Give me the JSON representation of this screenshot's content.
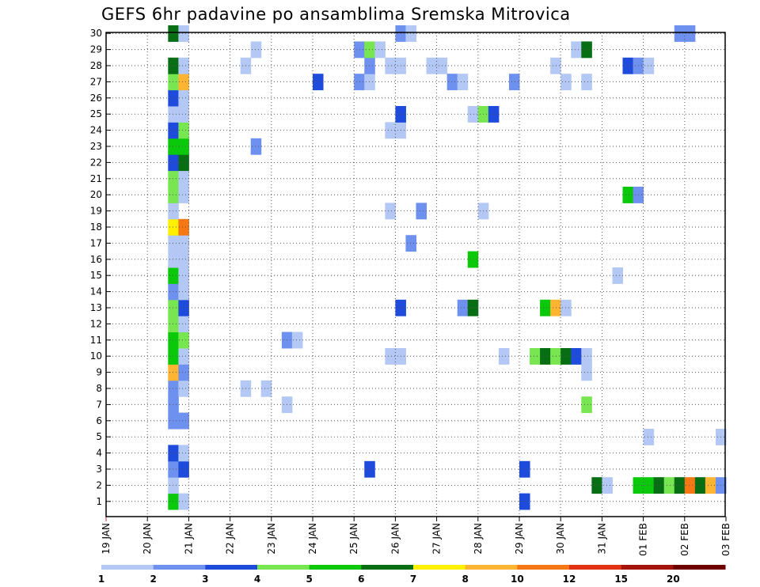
{
  "chart_data": {
    "type": "heatmap",
    "title": "GEFS 6hr padavine po ansamblima Sremska Mitrovica",
    "xlabel": "",
    "ylabel": "",
    "x_tick_labels": [
      "19 JAN",
      "20 JAN",
      "21 JAN",
      "22 JAN",
      "23 JAN",
      "24 JAN",
      "25 JAN",
      "26 JAN",
      "27 JAN",
      "28 JAN",
      "29 JAN",
      "30 JAN",
      "31 JAN",
      "01 FEB",
      "02 FEB",
      "03 FEB"
    ],
    "y_tick_labels": [
      "1",
      "2",
      "3",
      "4",
      "5",
      "6",
      "7",
      "8",
      "9",
      "10",
      "11",
      "12",
      "13",
      "14",
      "15",
      "16",
      "17",
      "18",
      "19",
      "20",
      "21",
      "22",
      "23",
      "24",
      "25",
      "26",
      "27",
      "28",
      "29",
      "30"
    ],
    "time_step_hours": 6,
    "grid": true,
    "legend_placement": "bottom",
    "legend": {
      "labels": [
        "1",
        "2",
        "3",
        "4",
        "5",
        "6",
        "7",
        "8",
        "10",
        "12",
        "15",
        "20"
      ],
      "colors": [
        "#b4c8f5",
        "#6e91f0",
        "#1e4bdc",
        "#78e650",
        "#0ac80a",
        "#086e14",
        "#fff000",
        "#ffb432",
        "#f57814",
        "#e13214",
        "#a5140a",
        "#6e0000"
      ]
    },
    "cells": [
      {
        "t": "20 JAN 18Z",
        "m": 1,
        "c": 4
      },
      {
        "t": "21 JAN 00Z",
        "m": 1,
        "c": 0
      },
      {
        "t": "20 JAN 18Z",
        "m": 2,
        "c": 0
      },
      {
        "t": "20 JAN 18Z",
        "m": 3,
        "c": 1
      },
      {
        "t": "21 JAN 00Z",
        "m": 3,
        "c": 2
      },
      {
        "t": "20 JAN 18Z",
        "m": 4,
        "c": 2
      },
      {
        "t": "21 JAN 00Z",
        "m": 4,
        "c": 0
      },
      {
        "t": "20 JAN 18Z",
        "m": 6,
        "c": 1
      },
      {
        "t": "21 JAN 00Z",
        "m": 6,
        "c": 1
      },
      {
        "t": "20 JAN 18Z",
        "m": 7,
        "c": 1
      },
      {
        "t": "20 JAN 18Z",
        "m": 8,
        "c": 1
      },
      {
        "t": "21 JAN 00Z",
        "m": 8,
        "c": 0
      },
      {
        "t": "20 JAN 18Z",
        "m": 9,
        "c": 7
      },
      {
        "t": "21 JAN 00Z",
        "m": 9,
        "c": 1
      },
      {
        "t": "20 JAN 18Z",
        "m": 10,
        "c": 4
      },
      {
        "t": "21 JAN 00Z",
        "m": 10,
        "c": 0
      },
      {
        "t": "20 JAN 18Z",
        "m": 11,
        "c": 4
      },
      {
        "t": "21 JAN 00Z",
        "m": 11,
        "c": 3
      },
      {
        "t": "20 JAN 18Z",
        "m": 12,
        "c": 3
      },
      {
        "t": "21 JAN 00Z",
        "m": 12,
        "c": 0
      },
      {
        "t": "20 JAN 18Z",
        "m": 13,
        "c": 3
      },
      {
        "t": "21 JAN 00Z",
        "m": 13,
        "c": 2
      },
      {
        "t": "20 JAN 18Z",
        "m": 14,
        "c": 1
      },
      {
        "t": "21 JAN 00Z",
        "m": 14,
        "c": 0
      },
      {
        "t": "20 JAN 18Z",
        "m": 15,
        "c": 4
      },
      {
        "t": "21 JAN 00Z",
        "m": 15,
        "c": 0
      },
      {
        "t": "20 JAN 18Z",
        "m": 16,
        "c": 0
      },
      {
        "t": "21 JAN 00Z",
        "m": 16,
        "c": 0
      },
      {
        "t": "20 JAN 18Z",
        "m": 17,
        "c": 0
      },
      {
        "t": "21 JAN 00Z",
        "m": 17,
        "c": 0
      },
      {
        "t": "20 JAN 18Z",
        "m": 18,
        "c": 6
      },
      {
        "t": "21 JAN 00Z",
        "m": 18,
        "c": 8
      },
      {
        "t": "20 JAN 18Z",
        "m": 19,
        "c": 0
      },
      {
        "t": "20 JAN 18Z",
        "m": 20,
        "c": 3
      },
      {
        "t": "21 JAN 00Z",
        "m": 20,
        "c": 0
      },
      {
        "t": "20 JAN 18Z",
        "m": 21,
        "c": 3
      },
      {
        "t": "21 JAN 00Z",
        "m": 21,
        "c": 0
      },
      {
        "t": "20 JAN 18Z",
        "m": 22,
        "c": 2
      },
      {
        "t": "21 JAN 00Z",
        "m": 22,
        "c": 5
      },
      {
        "t": "20 JAN 18Z",
        "m": 23,
        "c": 4
      },
      {
        "t": "21 JAN 00Z",
        "m": 23,
        "c": 4
      },
      {
        "t": "20 JAN 18Z",
        "m": 24,
        "c": 2
      },
      {
        "t": "21 JAN 00Z",
        "m": 24,
        "c": 3
      },
      {
        "t": "20 JAN 18Z",
        "m": 25,
        "c": 0
      },
      {
        "t": "21 JAN 00Z",
        "m": 25,
        "c": 0
      },
      {
        "t": "20 JAN 18Z",
        "m": 26,
        "c": 2
      },
      {
        "t": "21 JAN 00Z",
        "m": 26,
        "c": 0
      },
      {
        "t": "20 JAN 18Z",
        "m": 27,
        "c": 3
      },
      {
        "t": "21 JAN 00Z",
        "m": 27,
        "c": 7
      },
      {
        "t": "20 JAN 18Z",
        "m": 28,
        "c": 5
      },
      {
        "t": "21 JAN 00Z",
        "m": 28,
        "c": 0
      },
      {
        "t": "20 JAN 18Z",
        "m": 30,
        "c": 5
      },
      {
        "t": "21 JAN 00Z",
        "m": 30,
        "c": 0
      },
      {
        "t": "22 JAN 12Z",
        "m": 8,
        "c": 0
      },
      {
        "t": "22 JAN 12Z",
        "m": 28,
        "c": 0
      },
      {
        "t": "22 JAN 18Z",
        "m": 23,
        "c": 1
      },
      {
        "t": "22 JAN 18Z",
        "m": 29,
        "c": 0
      },
      {
        "t": "23 JAN 00Z",
        "m": 8,
        "c": 0
      },
      {
        "t": "23 JAN 12Z",
        "m": 7,
        "c": 0
      },
      {
        "t": "23 JAN 12Z",
        "m": 11,
        "c": 1
      },
      {
        "t": "23 JAN 18Z",
        "m": 11,
        "c": 0
      },
      {
        "t": "24 JAN 06Z",
        "m": 27,
        "c": 2
      },
      {
        "t": "25 JAN 06Z",
        "m": 27,
        "c": 1
      },
      {
        "t": "25 JAN 06Z",
        "m": 29,
        "c": 1
      },
      {
        "t": "25 JAN 12Z",
        "m": 3,
        "c": 2
      },
      {
        "t": "25 JAN 12Z",
        "m": 27,
        "c": 0
      },
      {
        "t": "25 JAN 12Z",
        "m": 28,
        "c": 1
      },
      {
        "t": "25 JAN 12Z",
        "m": 29,
        "c": 3
      },
      {
        "t": "25 JAN 18Z",
        "m": 29,
        "c": 0
      },
      {
        "t": "26 JAN 00Z",
        "m": 10,
        "c": 0
      },
      {
        "t": "26 JAN 00Z",
        "m": 19,
        "c": 0
      },
      {
        "t": "26 JAN 00Z",
        "m": 24,
        "c": 0
      },
      {
        "t": "26 JAN 00Z",
        "m": 28,
        "c": 0
      },
      {
        "t": "26 JAN 06Z",
        "m": 10,
        "c": 0
      },
      {
        "t": "26 JAN 06Z",
        "m": 13,
        "c": 2
      },
      {
        "t": "26 JAN 06Z",
        "m": 24,
        "c": 0
      },
      {
        "t": "26 JAN 06Z",
        "m": 25,
        "c": 2
      },
      {
        "t": "26 JAN 06Z",
        "m": 28,
        "c": 0
      },
      {
        "t": "26 JAN 06Z",
        "m": 30,
        "c": 1
      },
      {
        "t": "26 JAN 12Z",
        "m": 17,
        "c": 1
      },
      {
        "t": "26 JAN 12Z",
        "m": 30,
        "c": 0
      },
      {
        "t": "26 JAN 18Z",
        "m": 19,
        "c": 1
      },
      {
        "t": "27 JAN 00Z",
        "m": 28,
        "c": 0
      },
      {
        "t": "27 JAN 06Z",
        "m": 28,
        "c": 0
      },
      {
        "t": "27 JAN 12Z",
        "m": 27,
        "c": 1
      },
      {
        "t": "27 JAN 18Z",
        "m": 27,
        "c": 0
      },
      {
        "t": "27 JAN 18Z",
        "m": 13,
        "c": 1
      },
      {
        "t": "28 JAN 00Z",
        "m": 13,
        "c": 5
      },
      {
        "t": "28 JAN 00Z",
        "m": 16,
        "c": 4
      },
      {
        "t": "28 JAN 00Z",
        "m": 25,
        "c": 0
      },
      {
        "t": "28 JAN 06Z",
        "m": 19,
        "c": 0
      },
      {
        "t": "28 JAN 06Z",
        "m": 25,
        "c": 3
      },
      {
        "t": "28 JAN 12Z",
        "m": 25,
        "c": 2
      },
      {
        "t": "28 JAN 18Z",
        "m": 10,
        "c": 0
      },
      {
        "t": "29 JAN 00Z",
        "m": 27,
        "c": 1
      },
      {
        "t": "29 JAN 06Z",
        "m": 1,
        "c": 2
      },
      {
        "t": "29 JAN 06Z",
        "m": 3,
        "c": 2
      },
      {
        "t": "29 JAN 12Z",
        "m": 10,
        "c": 3
      },
      {
        "t": "29 JAN 18Z",
        "m": 10,
        "c": 5
      },
      {
        "t": "29 JAN 18Z",
        "m": 13,
        "c": 4
      },
      {
        "t": "30 JAN 00Z",
        "m": 10,
        "c": 3
      },
      {
        "t": "30 JAN 00Z",
        "m": 13,
        "c": 7
      },
      {
        "t": "30 JAN 00Z",
        "m": 28,
        "c": 0
      },
      {
        "t": "30 JAN 06Z",
        "m": 10,
        "c": 5
      },
      {
        "t": "30 JAN 06Z",
        "m": 13,
        "c": 0
      },
      {
        "t": "30 JAN 06Z",
        "m": 27,
        "c": 0
      },
      {
        "t": "30 JAN 12Z",
        "m": 10,
        "c": 2
      },
      {
        "t": "30 JAN 12Z",
        "m": 29,
        "c": 0
      },
      {
        "t": "30 JAN 18Z",
        "m": 7,
        "c": 3
      },
      {
        "t": "30 JAN 18Z",
        "m": 9,
        "c": 0
      },
      {
        "t": "30 JAN 18Z",
        "m": 10,
        "c": 0
      },
      {
        "t": "30 JAN 18Z",
        "m": 27,
        "c": 0
      },
      {
        "t": "30 JAN 18Z",
        "m": 29,
        "c": 5
      },
      {
        "t": "31 JAN 00Z",
        "m": 2,
        "c": 5
      },
      {
        "t": "31 JAN 06Z",
        "m": 2,
        "c": 0
      },
      {
        "t": "31 JAN 12Z",
        "m": 15,
        "c": 0
      },
      {
        "t": "31 JAN 18Z",
        "m": 20,
        "c": 4
      },
      {
        "t": "31 JAN 18Z",
        "m": 28,
        "c": 2
      },
      {
        "t": "01 FEB 00Z",
        "m": 2,
        "c": 4
      },
      {
        "t": "01 FEB 00Z",
        "m": 20,
        "c": 1
      },
      {
        "t": "01 FEB 00Z",
        "m": 28,
        "c": 1
      },
      {
        "t": "01 FEB 06Z",
        "m": 2,
        "c": 4
      },
      {
        "t": "01 FEB 06Z",
        "m": 5,
        "c": 0
      },
      {
        "t": "01 FEB 06Z",
        "m": 28,
        "c": 0
      },
      {
        "t": "01 FEB 12Z",
        "m": 2,
        "c": 5
      },
      {
        "t": "01 FEB 18Z",
        "m": 2,
        "c": 3
      },
      {
        "t": "02 FEB 00Z",
        "m": 2,
        "c": 5
      },
      {
        "t": "02 FEB 00Z",
        "m": 30,
        "c": 1
      },
      {
        "t": "02 FEB 06Z",
        "m": 2,
        "c": 8
      },
      {
        "t": "02 FEB 06Z",
        "m": 30,
        "c": 1
      },
      {
        "t": "02 FEB 12Z",
        "m": 2,
        "c": 5
      },
      {
        "t": "02 FEB 18Z",
        "m": 2,
        "c": 7
      },
      {
        "t": "03 FEB 00Z",
        "m": 2,
        "c": 1
      },
      {
        "t": "03 FEB 00Z",
        "m": 5,
        "c": 0
      }
    ]
  }
}
